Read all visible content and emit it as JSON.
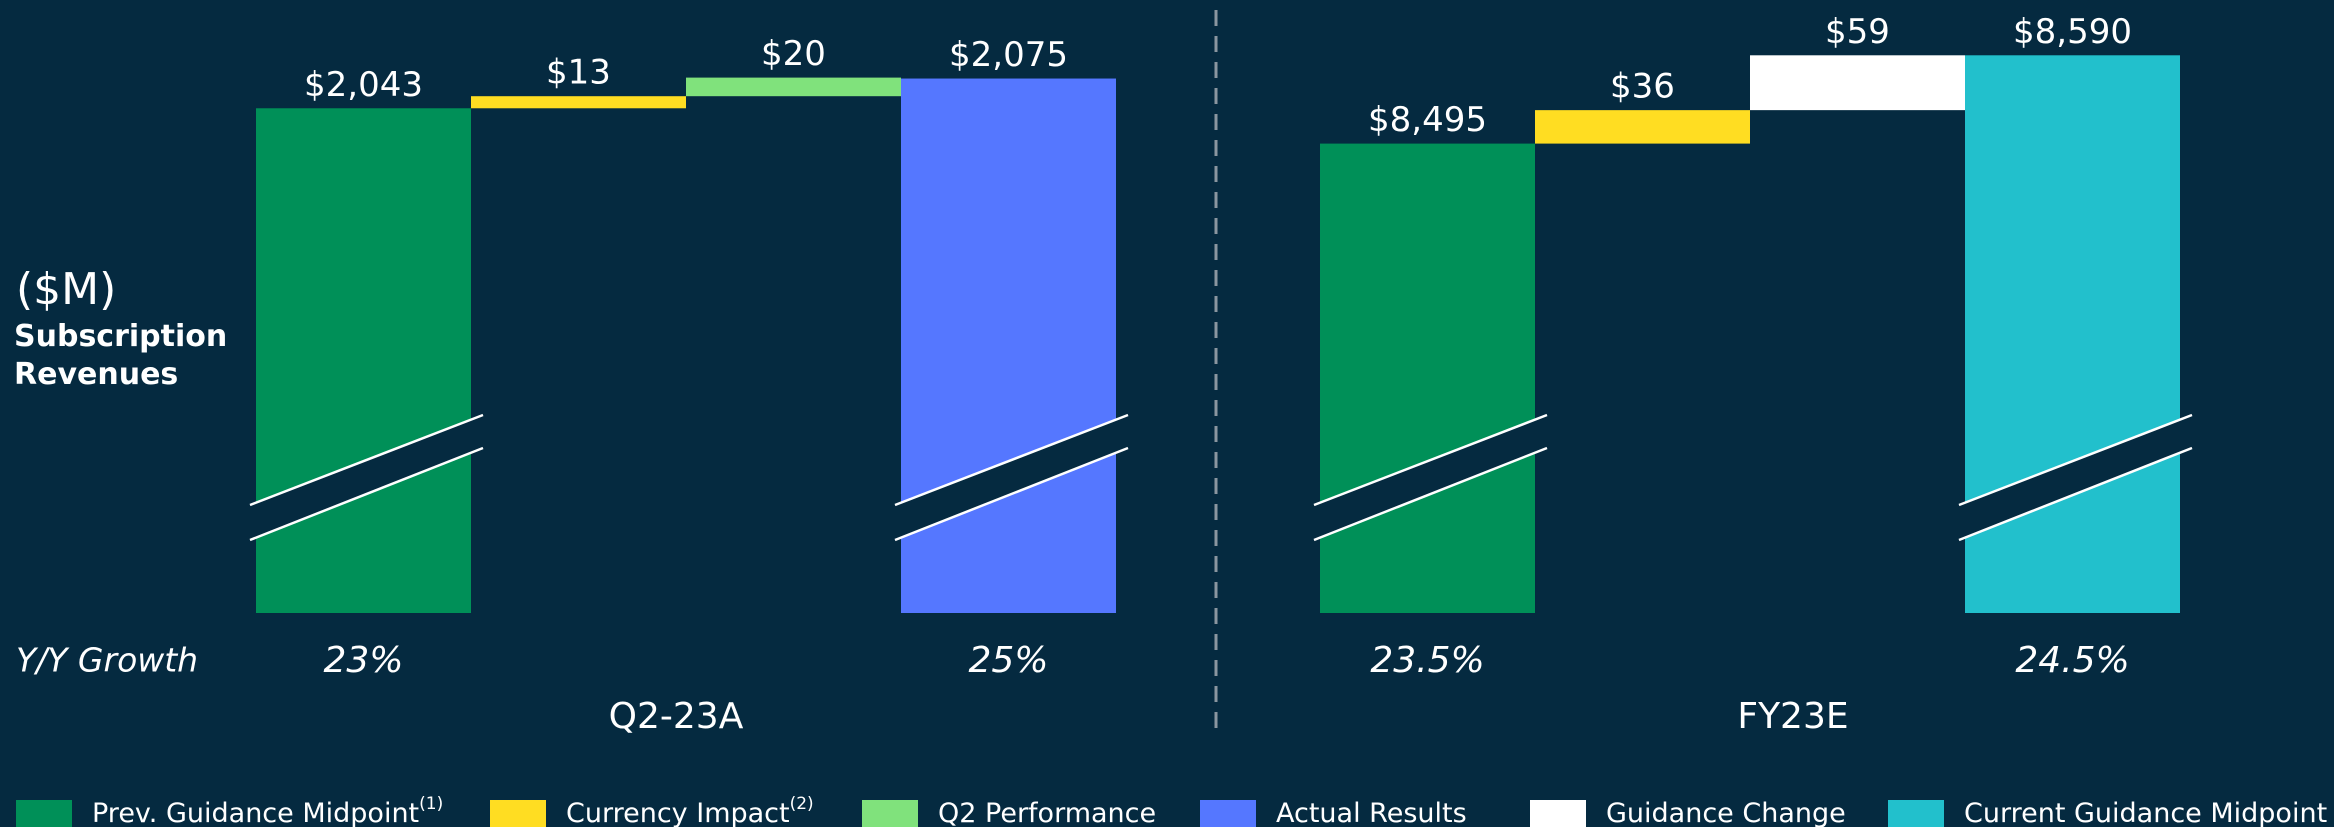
{
  "unit_label": "($M)",
  "metric_label": "Subscription Revenues",
  "growth_label": "Y/Y Growth",
  "legend": [
    {
      "name": "Prev. Guidance Midpoint",
      "note": "(1)",
      "color": "#009058"
    },
    {
      "name": "Currency Impact",
      "note": "(2)",
      "color": "#ffdd22"
    },
    {
      "name": "Q2 Performance",
      "color": "#80e27c"
    },
    {
      "name": "Actual Results",
      "color": "#5577ff"
    },
    {
      "name": "Guidance Change",
      "color": "#ffffff"
    },
    {
      "name": "Current Guidance Midpoint",
      "color": "#22c0cc"
    }
  ],
  "chart_data": [
    {
      "type": "waterfall",
      "xlabel": "Q2-23A",
      "categories": [
        "Prev. Guidance Midpoint",
        "Currency Impact",
        "Q2 Performance",
        "Actual Results"
      ],
      "measure": [
        "absolute",
        "relative",
        "relative",
        "total"
      ],
      "values": [
        2043,
        13,
        20,
        2075
      ],
      "value_labels": [
        "$2,043",
        "$13",
        "$20",
        "$2,075"
      ],
      "colors": [
        "#009058",
        "#ffdd22",
        "#80e27c",
        "#5577ff"
      ],
      "growth_labels": [
        "23%",
        null,
        null,
        "25%"
      ],
      "ylim": [
        1500,
        2110
      ],
      "axis_break": true
    },
    {
      "type": "waterfall",
      "xlabel": "FY23E",
      "categories": [
        "Prev. Guidance Midpoint",
        "Currency Impact",
        "Guidance Change",
        "Current Guidance Midpoint"
      ],
      "measure": [
        "absolute",
        "relative",
        "relative",
        "total"
      ],
      "values": [
        8495,
        36,
        59,
        8590
      ],
      "value_labels": [
        "$8,495",
        "$36",
        "$59",
        "$8,590"
      ],
      "colors": [
        "#009058",
        "#ffdd22",
        "#ffffff",
        "#22c0cc"
      ],
      "growth_labels": [
        "23.5%",
        null,
        null,
        "24.5%"
      ],
      "ylim": [
        7990,
        8600
      ],
      "axis_break": true
    }
  ]
}
